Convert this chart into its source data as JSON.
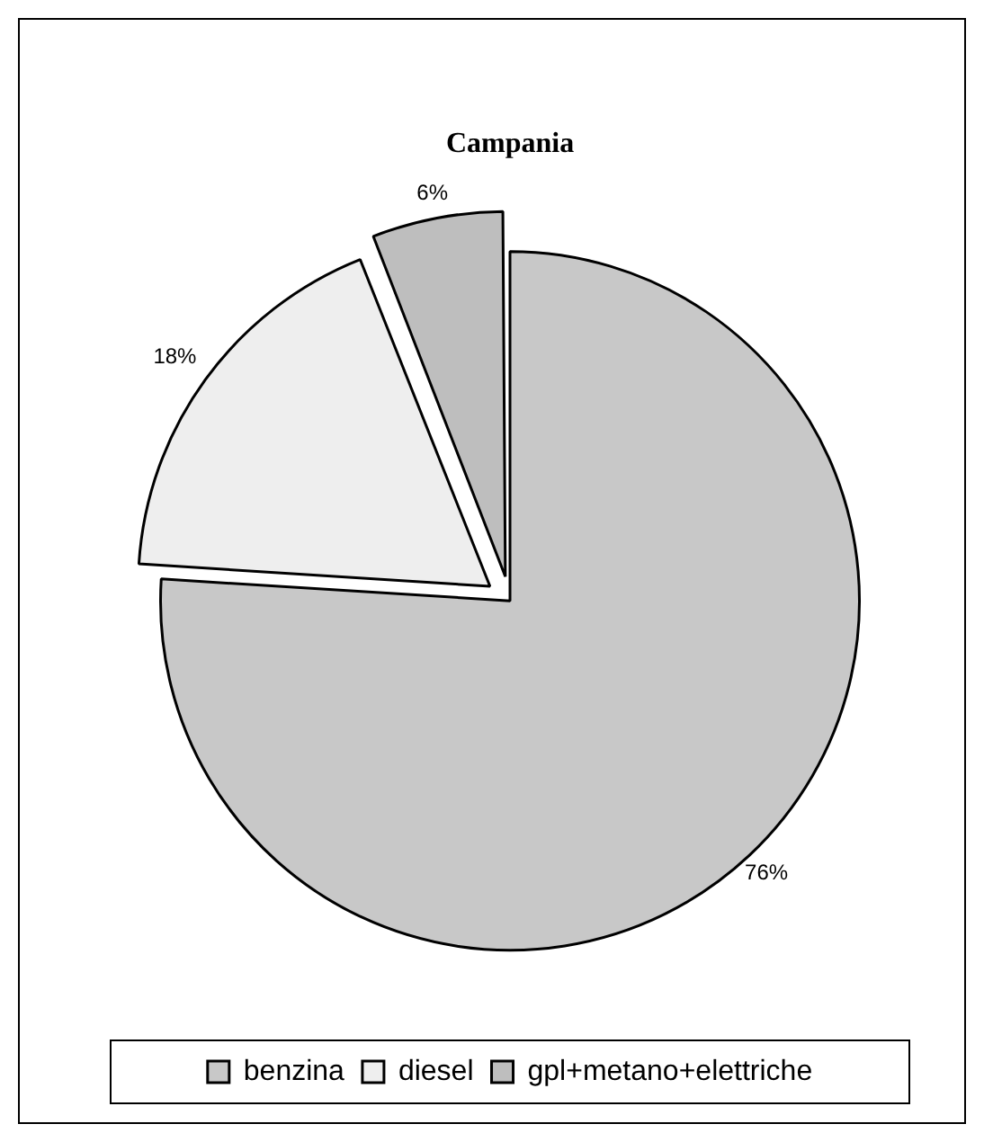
{
  "chart_data": {
    "type": "pie",
    "title": "Campania",
    "categories": [
      "benzina",
      "diesel",
      "gpl+metano+elettriche"
    ],
    "values": [
      76,
      18,
      6
    ],
    "value_labels": [
      "76%",
      "18%",
      "6%"
    ],
    "colors": [
      "#c8c8c8",
      "#eeeeee",
      "#bebebe"
    ],
    "legend": "bottom"
  }
}
